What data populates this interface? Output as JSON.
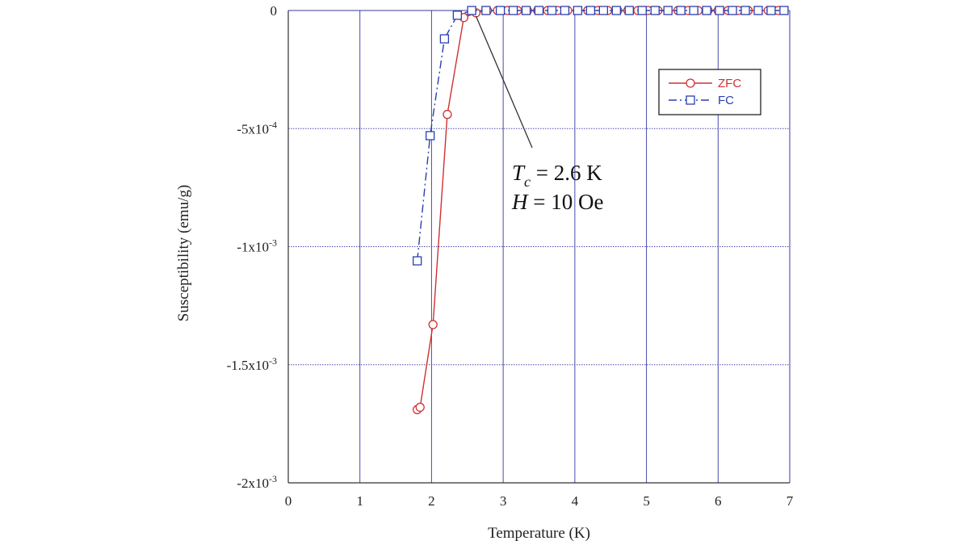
{
  "chart_data": {
    "type": "scatter",
    "xlabel": "Temperature (K)",
    "ylabel": "Susceptibility (emu/g)",
    "xlim": [
      0,
      7
    ],
    "ylim": [
      -0.002,
      0
    ],
    "grid": true,
    "legend_position": "top-right",
    "x_ticks": [
      {
        "value": 0,
        "label": "0"
      },
      {
        "value": 1,
        "label": "1"
      },
      {
        "value": 2,
        "label": "2"
      },
      {
        "value": 3,
        "label": "3"
      },
      {
        "value": 4,
        "label": "4"
      },
      {
        "value": 5,
        "label": "5"
      },
      {
        "value": 6,
        "label": "6"
      },
      {
        "value": 7,
        "label": "7"
      }
    ],
    "y_ticks": [
      {
        "value": 0,
        "mantissa": "0",
        "exponent": ""
      },
      {
        "value": -0.0005,
        "mantissa": "-5x10",
        "exponent": "-4"
      },
      {
        "value": -0.001,
        "mantissa": "-1x10",
        "exponent": "-3"
      },
      {
        "value": -0.0015,
        "mantissa": "-1.5x10",
        "exponent": "-3"
      },
      {
        "value": -0.002,
        "mantissa": "-2x10",
        "exponent": "-3"
      }
    ],
    "series": [
      {
        "name": "ZFC",
        "color": "#d03030",
        "marker": "circle",
        "line": "solid",
        "x": [
          1.8,
          1.84,
          2.02,
          2.22,
          2.45,
          2.62,
          2.78,
          2.92,
          3.06,
          3.2,
          3.34,
          3.48,
          3.62,
          3.76,
          3.9,
          4.04,
          4.18,
          4.32,
          4.46,
          4.6,
          4.74,
          4.88,
          5.02,
          5.16,
          5.3,
          5.44,
          5.58,
          5.72,
          5.86,
          6.0,
          6.14,
          6.28,
          6.42,
          6.56,
          6.7,
          6.84
        ],
        "y": [
          -0.00169,
          -0.00168,
          -0.00133,
          -0.00044,
          -3e-05,
          -1e-05,
          0,
          0,
          0,
          0,
          0,
          0,
          0,
          0,
          0,
          0,
          0,
          0,
          0,
          0,
          0,
          0,
          0,
          0,
          0,
          0,
          0,
          0,
          0,
          0,
          0,
          0,
          0,
          0,
          0,
          0
        ]
      },
      {
        "name": "FC",
        "color": "#2a3fb0",
        "marker": "square",
        "line": "dashdot",
        "x": [
          1.8,
          1.98,
          2.18,
          2.36,
          2.56,
          2.76,
          2.96,
          3.14,
          3.32,
          3.5,
          3.68,
          3.86,
          4.04,
          4.22,
          4.4,
          4.58,
          4.76,
          4.94,
          5.12,
          5.3,
          5.48,
          5.66,
          5.84,
          6.02,
          6.2,
          6.38,
          6.56,
          6.74,
          6.92
        ],
        "y": [
          -0.00106,
          -0.00053,
          -0.00012,
          -2e-05,
          0,
          0,
          0,
          0,
          0,
          0,
          0,
          0,
          0,
          0,
          0,
          0,
          0,
          0,
          0,
          0,
          0,
          0,
          0,
          0,
          0,
          0,
          0,
          0,
          0
        ]
      }
    ],
    "annotation": {
      "line1_symbol": "T",
      "line1_subscript": "c",
      "line1_rest": " = 2.6 K",
      "line2_symbol": "H",
      "line2_rest": " = 10 Oe",
      "arrow_target": {
        "x": 2.62,
        "y": -1e-05
      }
    },
    "colors": {
      "axis": "#3a3aa0",
      "grid": "#4a4ab0",
      "frame": "#333333"
    }
  }
}
